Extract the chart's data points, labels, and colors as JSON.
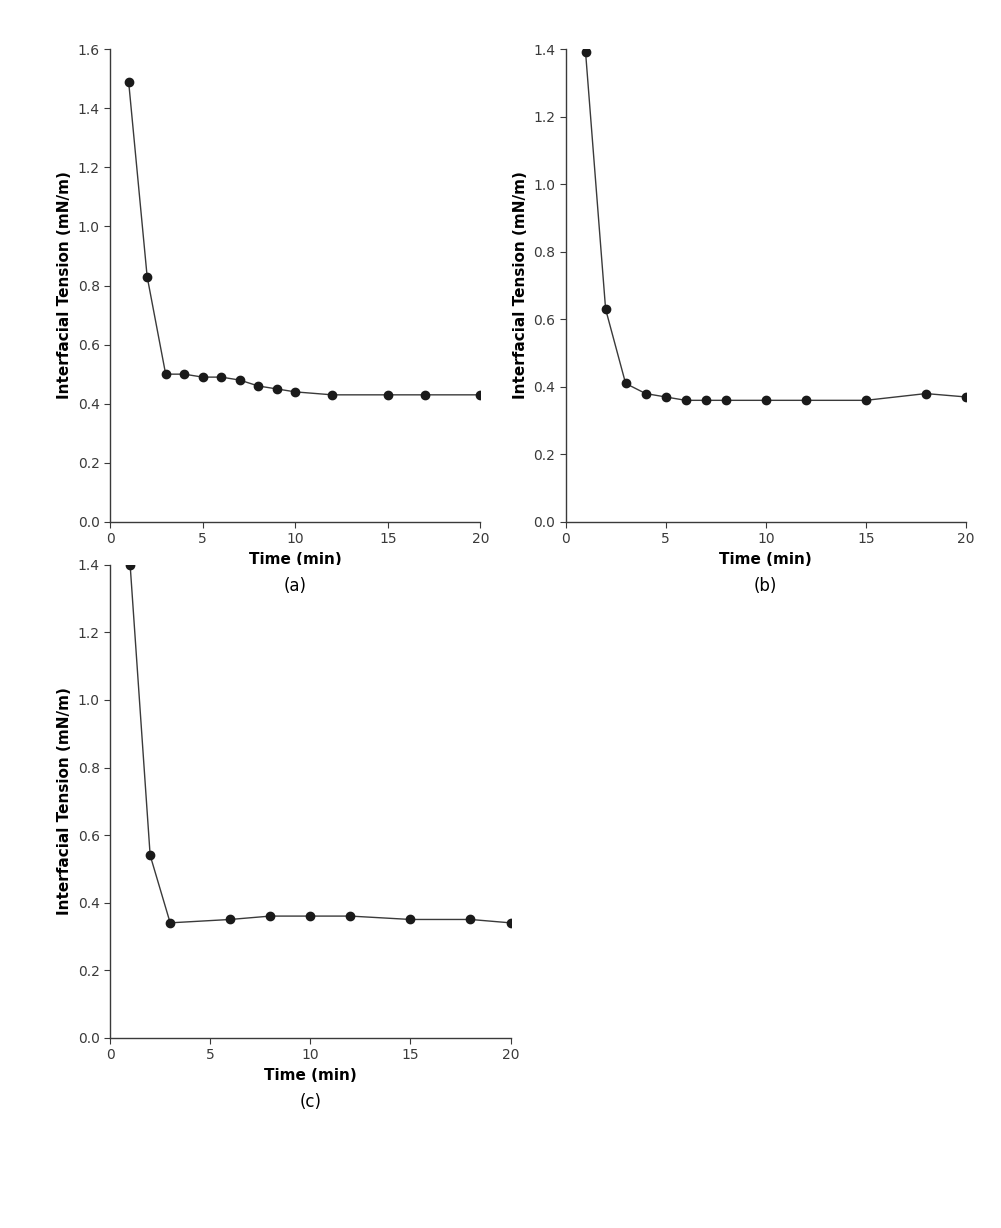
{
  "subplots": [
    {
      "label": "(a)",
      "x": [
        1,
        2,
        3,
        4,
        5,
        6,
        7,
        8,
        9,
        10,
        12,
        15,
        17,
        20
      ],
      "y": [
        1.49,
        0.83,
        0.5,
        0.5,
        0.49,
        0.49,
        0.48,
        0.46,
        0.45,
        0.44,
        0.43,
        0.43,
        0.43,
        0.43
      ],
      "ylim": [
        0.0,
        1.6
      ],
      "yticks": [
        0.0,
        0.2,
        0.4,
        0.6,
        0.8,
        1.0,
        1.2,
        1.4,
        1.6
      ],
      "xlim": [
        0,
        20
      ],
      "xticks": [
        0,
        5,
        10,
        15,
        20
      ]
    },
    {
      "label": "(b)",
      "x": [
        1,
        2,
        3,
        4,
        5,
        6,
        7,
        8,
        10,
        12,
        15,
        18,
        20
      ],
      "y": [
        1.39,
        0.63,
        0.41,
        0.38,
        0.37,
        0.36,
        0.36,
        0.36,
        0.36,
        0.36,
        0.36,
        0.38,
        0.37
      ],
      "ylim": [
        0.0,
        1.4
      ],
      "yticks": [
        0.0,
        0.2,
        0.4,
        0.6,
        0.8,
        1.0,
        1.2,
        1.4
      ],
      "xlim": [
        0,
        20
      ],
      "xticks": [
        0,
        5,
        10,
        15,
        20
      ]
    },
    {
      "label": "(c)",
      "x": [
        1,
        2,
        3,
        6,
        8,
        10,
        12,
        15,
        18,
        20
      ],
      "y": [
        1.4,
        0.54,
        0.34,
        0.35,
        0.36,
        0.36,
        0.36,
        0.35,
        0.35,
        0.34
      ],
      "ylim": [
        0.0,
        1.4
      ],
      "yticks": [
        0.0,
        0.2,
        0.4,
        0.6,
        0.8,
        1.0,
        1.2,
        1.4
      ],
      "xlim": [
        0,
        20
      ],
      "xticks": [
        0,
        5,
        10,
        15,
        20
      ]
    }
  ],
  "xlabel": "Time (min)",
  "ylabel": "Interfacial Tension (mN/m)",
  "line_color": "#3a3a3a",
  "marker_color": "#1a1a1a",
  "marker_size": 6,
  "line_width": 1.0,
  "label_fontsize": 11,
  "tick_fontsize": 10,
  "sublabel_fontsize": 12,
  "background_color": "#ffffff"
}
